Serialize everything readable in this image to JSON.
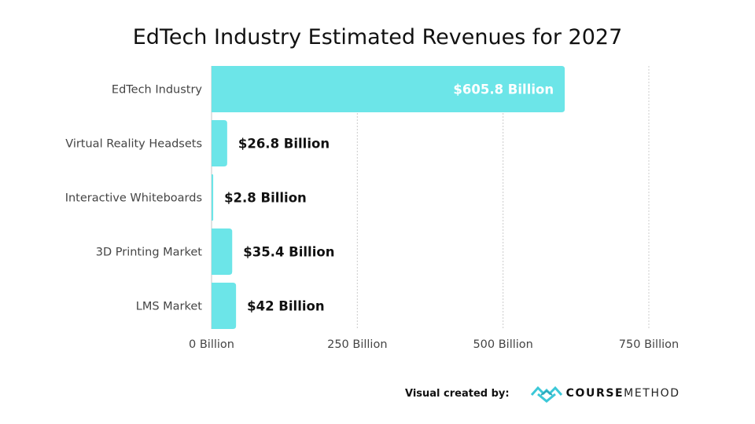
{
  "chart_data": {
    "type": "bar",
    "orientation": "horizontal",
    "title": "EdTech Industry Estimated Revenues for 2027",
    "xlabel": "",
    "ylabel": "",
    "categories": [
      "EdTech Industry",
      "Virtual Reality Headsets",
      "Interactive Whiteboards",
      "3D Printing Market",
      "LMS Market"
    ],
    "values": [
      605.8,
      26.8,
      2.8,
      35.4,
      42
    ],
    "unit": "Billion USD",
    "data_labels": [
      "$605.8 Billion",
      "$26.8 Billion",
      "$2.8 Billion",
      "$35.4 Billion",
      "$42 Billion"
    ],
    "xlim": [
      0,
      750
    ],
    "x_ticks": [
      0,
      250,
      500,
      750
    ],
    "x_tick_labels": [
      "0 Billion",
      "250 Billion",
      "500 Billion",
      "750 Billion"
    ],
    "grid": "vertical dotted",
    "legend": "none",
    "colors": {
      "bar": "#6ce5e8",
      "label_inside": "#ffffff",
      "label_outside": "#111111",
      "grid": "#cccccc"
    }
  },
  "footer": {
    "credit_label": "Visual created by:",
    "brand_bold": "COURSE",
    "brand_light": "METHOD",
    "brand_icon": "coursemethod-logo-icon",
    "brand_color": "#3cc8d8"
  }
}
